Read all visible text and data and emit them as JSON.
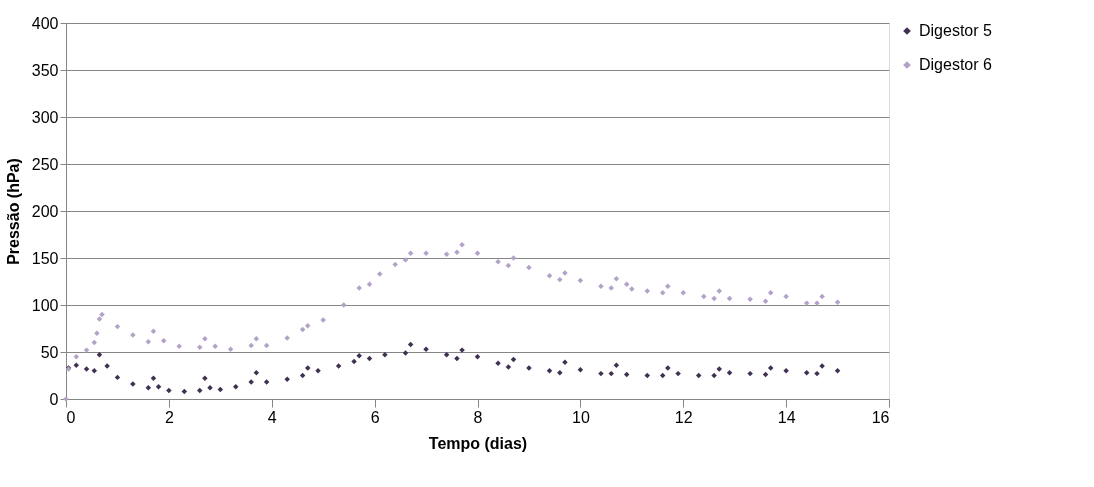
{
  "chart_data": {
    "type": "scatter",
    "xlabel": "Tempo (dias)",
    "ylabel": "Pressão (hPa)",
    "xlim": [
      0,
      16
    ],
    "xticks": [
      0,
      2,
      4,
      6,
      8,
      10,
      12,
      14,
      16
    ],
    "ylim": [
      0,
      400
    ],
    "yticks": [
      0,
      50,
      100,
      150,
      200,
      250,
      300,
      350,
      400
    ],
    "grid": "y",
    "legend": "right",
    "marker": "diamond",
    "series": [
      {
        "name": "Digestor 5",
        "color": "#403152",
        "x": [
          0.05,
          0.2,
          0.4,
          0.55,
          0.65,
          0.8,
          1.0,
          1.3,
          1.6,
          1.7,
          1.8,
          2.0,
          2.3,
          2.6,
          2.7,
          2.8,
          3.0,
          3.3,
          3.6,
          3.7,
          3.9,
          4.3,
          4.6,
          4.7,
          4.9,
          5.3,
          5.6,
          5.7,
          5.9,
          6.2,
          6.6,
          6.7,
          7.0,
          7.4,
          7.6,
          7.7,
          8.0,
          8.4,
          8.6,
          8.7,
          9.0,
          9.4,
          9.6,
          9.7,
          10.0,
          10.4,
          10.6,
          10.7,
          10.9,
          11.3,
          11.6,
          11.7,
          11.9,
          12.3,
          12.6,
          12.7,
          12.9,
          13.3,
          13.6,
          13.7,
          14.0,
          14.4,
          14.6,
          14.7,
          15.0
        ],
        "values": [
          33,
          36,
          32,
          30,
          47,
          35,
          23,
          16,
          12,
          22,
          13,
          9,
          8,
          9,
          22,
          12,
          10,
          13,
          18,
          28,
          18,
          21,
          25,
          33,
          30,
          35,
          40,
          46,
          43,
          47,
          49,
          58,
          53,
          47,
          43,
          52,
          45,
          38,
          34,
          42,
          33,
          30,
          28,
          39,
          31,
          27,
          27,
          36,
          26,
          25,
          25,
          33,
          27,
          25,
          25,
          32,
          28,
          27,
          26,
          33,
          30,
          28,
          27,
          35,
          30
        ]
      },
      {
        "name": "Digestor 6",
        "color": "#b3a2c7",
        "x": [
          0,
          0.05,
          0.2,
          0.4,
          0.55,
          0.6,
          0.65,
          0.7,
          1.0,
          1.3,
          1.6,
          1.7,
          1.9,
          2.2,
          2.6,
          2.7,
          2.9,
          3.2,
          3.6,
          3.7,
          3.9,
          4.3,
          4.6,
          4.7,
          5.0,
          5.4,
          5.7,
          5.9,
          6.1,
          6.4,
          6.6,
          6.7,
          7.0,
          7.4,
          7.6,
          7.7,
          8.0,
          8.4,
          8.6,
          8.7,
          9.0,
          9.4,
          9.6,
          9.7,
          10.0,
          10.4,
          10.6,
          10.7,
          10.9,
          11.0,
          11.3,
          11.6,
          11.7,
          12.0,
          12.4,
          12.6,
          12.7,
          12.9,
          13.3,
          13.6,
          13.7,
          14.0,
          14.4,
          14.6,
          14.7,
          15.0
        ],
        "values": [
          0,
          32,
          45,
          52,
          60,
          70,
          85,
          90,
          77,
          68,
          61,
          72,
          62,
          56,
          55,
          64,
          56,
          53,
          57,
          64,
          57,
          65,
          74,
          78,
          84,
          100,
          118,
          122,
          133,
          143,
          148,
          155,
          155,
          154,
          156,
          164,
          155,
          146,
          142,
          150,
          140,
          131,
          127,
          134,
          126,
          120,
          118,
          128,
          122,
          117,
          115,
          113,
          120,
          113,
          109,
          107,
          115,
          107,
          106,
          104,
          113,
          109,
          102,
          102,
          109,
          103
        ]
      }
    ]
  }
}
